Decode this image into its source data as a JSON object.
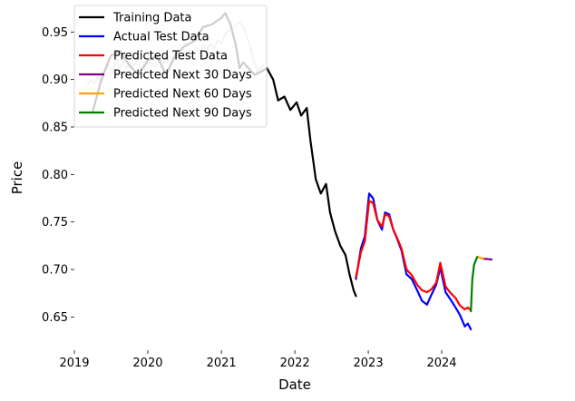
{
  "chart_data": {
    "type": "line",
    "title": "",
    "xlabel": "Date",
    "ylabel": "Price",
    "x_ticks": [
      "2019",
      "2020",
      "2021",
      "2022",
      "2023",
      "2024"
    ],
    "y_ticks": [
      "0.65",
      "0.70",
      "0.75",
      "0.80",
      "0.85",
      "0.90",
      "0.95"
    ],
    "xlim": [
      "2019-01-01",
      "2024-12-31"
    ],
    "ylim": [
      0.615,
      0.978
    ],
    "grid": false,
    "legend_position": "top-left",
    "series": [
      {
        "name": "Training Data",
        "color": "#000000",
        "points": [
          [
            "2019-04-01",
            0.865
          ],
          [
            "2019-05-15",
            0.9
          ],
          [
            "2019-07-01",
            0.925
          ],
          [
            "2019-08-15",
            0.93
          ],
          [
            "2019-10-01",
            0.915
          ],
          [
            "2019-11-15",
            0.905
          ],
          [
            "2020-01-01",
            0.92
          ],
          [
            "2020-02-15",
            0.925
          ],
          [
            "2020-04-01",
            0.905
          ],
          [
            "2020-05-15",
            0.925
          ],
          [
            "2020-07-01",
            0.935
          ],
          [
            "2020-08-15",
            0.94
          ],
          [
            "2020-10-01",
            0.955
          ],
          [
            "2020-11-15",
            0.958
          ],
          [
            "2021-01-01",
            0.965
          ],
          [
            "2021-01-20",
            0.97
          ],
          [
            "2021-02-15",
            0.958
          ],
          [
            "2021-03-15",
            0.935
          ],
          [
            "2021-04-01",
            0.912
          ],
          [
            "2021-04-20",
            0.918
          ],
          [
            "2021-05-15",
            0.912
          ],
          [
            "2021-06-15",
            0.905
          ],
          [
            "2021-07-15",
            0.908
          ],
          [
            "2021-08-15",
            0.912
          ],
          [
            "2021-09-15",
            0.9
          ],
          [
            "2021-10-10",
            0.878
          ],
          [
            "2021-11-10",
            0.882
          ],
          [
            "2021-12-10",
            0.868
          ],
          [
            "2022-01-10",
            0.876
          ],
          [
            "2022-02-01",
            0.862
          ],
          [
            "2022-03-01",
            0.87
          ],
          [
            "2022-03-20",
            0.835
          ],
          [
            "2022-04-15",
            0.795
          ],
          [
            "2022-05-10",
            0.78
          ],
          [
            "2022-06-05",
            0.79
          ],
          [
            "2022-06-25",
            0.76
          ],
          [
            "2022-07-20",
            0.74
          ],
          [
            "2022-08-15",
            0.725
          ],
          [
            "2022-09-10",
            0.715
          ],
          [
            "2022-09-30",
            0.695
          ],
          [
            "2022-10-20",
            0.678
          ],
          [
            "2022-11-01",
            0.672
          ]
        ]
      },
      {
        "name": "Actual Test Data",
        "color": "#0000ff",
        "points": [
          [
            "2022-11-01",
            0.69
          ],
          [
            "2022-11-25",
            0.722
          ],
          [
            "2022-12-15",
            0.735
          ],
          [
            "2023-01-05",
            0.78
          ],
          [
            "2023-01-25",
            0.775
          ],
          [
            "2023-02-15",
            0.752
          ],
          [
            "2023-03-10",
            0.742
          ],
          [
            "2023-03-25",
            0.76
          ],
          [
            "2023-04-15",
            0.758
          ],
          [
            "2023-05-05",
            0.742
          ],
          [
            "2023-05-25",
            0.732
          ],
          [
            "2023-06-15",
            0.72
          ],
          [
            "2023-07-10",
            0.695
          ],
          [
            "2023-08-05",
            0.69
          ],
          [
            "2023-09-01",
            0.678
          ],
          [
            "2023-09-25",
            0.667
          ],
          [
            "2023-10-20",
            0.663
          ],
          [
            "2023-11-10",
            0.673
          ],
          [
            "2023-12-05",
            0.684
          ],
          [
            "2023-12-25",
            0.702
          ],
          [
            "2024-01-20",
            0.676
          ],
          [
            "2024-02-15",
            0.668
          ],
          [
            "2024-03-10",
            0.66
          ],
          [
            "2024-04-01",
            0.652
          ],
          [
            "2024-04-25",
            0.64
          ],
          [
            "2024-05-10",
            0.643
          ],
          [
            "2024-05-25",
            0.637
          ]
        ]
      },
      {
        "name": "Predicted Test Data",
        "color": "#ff0000",
        "points": [
          [
            "2022-11-01",
            0.692
          ],
          [
            "2022-11-25",
            0.718
          ],
          [
            "2022-12-15",
            0.73
          ],
          [
            "2023-01-05",
            0.772
          ],
          [
            "2023-01-25",
            0.77
          ],
          [
            "2023-02-15",
            0.752
          ],
          [
            "2023-03-10",
            0.745
          ],
          [
            "2023-03-25",
            0.758
          ],
          [
            "2023-04-15",
            0.756
          ],
          [
            "2023-05-05",
            0.742
          ],
          [
            "2023-05-25",
            0.733
          ],
          [
            "2023-06-15",
            0.722
          ],
          [
            "2023-07-10",
            0.7
          ],
          [
            "2023-08-05",
            0.694
          ],
          [
            "2023-09-01",
            0.684
          ],
          [
            "2023-09-25",
            0.678
          ],
          [
            "2023-10-20",
            0.676
          ],
          [
            "2023-11-10",
            0.679
          ],
          [
            "2023-12-05",
            0.686
          ],
          [
            "2023-12-25",
            0.707
          ],
          [
            "2024-01-20",
            0.682
          ],
          [
            "2024-02-15",
            0.675
          ],
          [
            "2024-03-10",
            0.67
          ],
          [
            "2024-04-01",
            0.662
          ],
          [
            "2024-04-25",
            0.658
          ],
          [
            "2024-05-10",
            0.66
          ],
          [
            "2024-05-25",
            0.657
          ]
        ]
      },
      {
        "name": "Predicted Next 30 Days",
        "color": "#800080",
        "points": [
          [
            "2024-07-20",
            0.7115
          ],
          [
            "2024-08-20",
            0.7108
          ],
          [
            "2024-09-05",
            0.7105
          ]
        ]
      },
      {
        "name": "Predicted Next 60 Days",
        "color": "#ffa500",
        "points": [
          [
            "2024-06-25",
            0.7135
          ],
          [
            "2024-07-10",
            0.7125
          ],
          [
            "2024-07-25",
            0.7115
          ]
        ]
      },
      {
        "name": "Predicted Next 90 Days",
        "color": "#008000",
        "points": [
          [
            "2024-05-25",
            0.656
          ],
          [
            "2024-06-01",
            0.69
          ],
          [
            "2024-06-10",
            0.705
          ],
          [
            "2024-06-25",
            0.713
          ]
        ]
      }
    ]
  }
}
